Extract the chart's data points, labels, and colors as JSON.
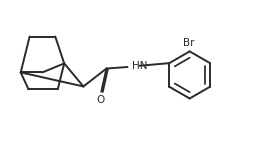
{
  "background_color": "#ffffff",
  "line_color": "#2a2a2a",
  "line_width": 1.4,
  "text_color": "#2a2a2a",
  "label_fontsize": 7.5,
  "br_label": "Br",
  "hn_label": "HN",
  "o_label": "O",
  "fig_width": 2.59,
  "fig_height": 1.55,
  "dpi": 100
}
